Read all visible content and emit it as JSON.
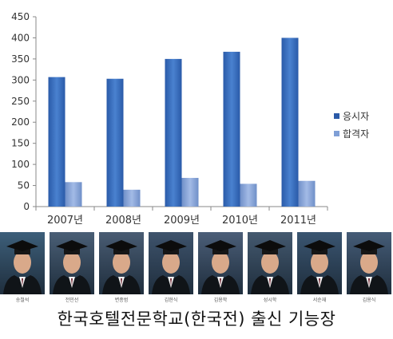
{
  "chart_data": {
    "type": "bar",
    "categories": [
      "2007년",
      "2008년",
      "2009년",
      "2010년",
      "2011년"
    ],
    "series": [
      {
        "name": "응시자",
        "values": [
          307,
          303,
          350,
          367,
          400
        ],
        "color": "#3a6fbf"
      },
      {
        "name": "합격자",
        "values": [
          58,
          40,
          68,
          54,
          61
        ],
        "color": "#7f9fd6"
      }
    ],
    "ylim": [
      0,
      450
    ],
    "yticks": [
      0,
      50,
      100,
      150,
      200,
      250,
      300,
      350,
      400,
      450
    ],
    "grid": false,
    "legend": "right"
  },
  "graduates": [
    {
      "name": "송철석"
    },
    {
      "name": "전민선"
    },
    {
      "name": "변종범"
    },
    {
      "name": "김현식"
    },
    {
      "name": "김용학"
    },
    {
      "name": "성시학"
    },
    {
      "name": "서순재"
    },
    {
      "name": "김용식"
    }
  ],
  "caption": "한국호텔전문학교(한국전) 출신 기능장"
}
